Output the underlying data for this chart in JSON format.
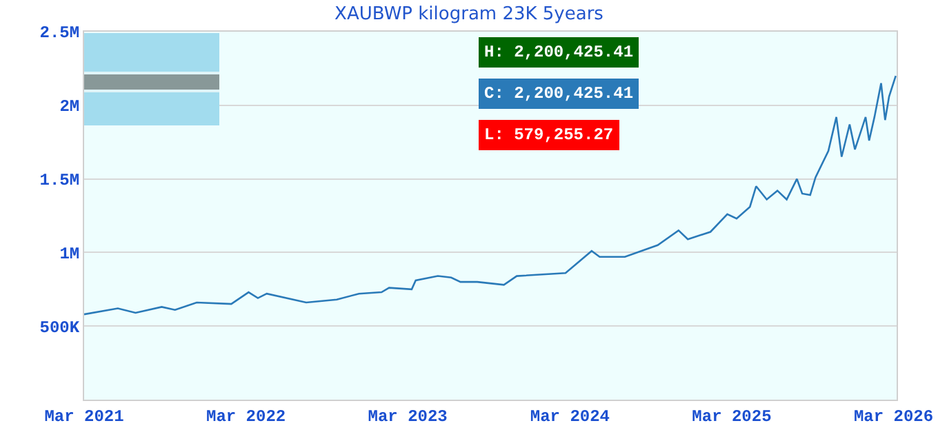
{
  "chart_data": {
    "type": "line",
    "title": "XAUBWP kilogram 23K 5years",
    "x": [
      "2021-03-01",
      "2021-05-16",
      "2021-06-25",
      "2021-08-23",
      "2021-09-22",
      "2021-11-10",
      "2022-01-27",
      "2022-03-07",
      "2022-03-28",
      "2022-04-17",
      "2022-07-15",
      "2022-09-22",
      "2022-11-11",
      "2023-01-01",
      "2023-01-18",
      "2023-03-10",
      "2023-03-19",
      "2023-05-08",
      "2023-06-07",
      "2023-06-28",
      "2023-08-05",
      "2023-10-04",
      "2023-11-02",
      "2024-02-20",
      "2024-04-19",
      "2024-05-07",
      "2024-07-03",
      "2024-09-15",
      "2024-11-01",
      "2024-11-22",
      "2025-01-12",
      "2025-02-19",
      "2025-03-12",
      "2025-04-11",
      "2025-04-25",
      "2025-05-19",
      "2025-06-12",
      "2025-07-03",
      "2025-07-26",
      "2025-08-07",
      "2025-08-25",
      "2025-09-06",
      "2025-10-05",
      "2025-10-23",
      "2025-11-04",
      "2025-11-22",
      "2025-12-04",
      "2025-12-28",
      "2026-01-05",
      "2026-01-17",
      "2026-02-01",
      "2026-02-10",
      "2026-02-19",
      "2026-03-06"
    ],
    "series": [
      {
        "color": "#2a7ab8",
        "values": [
          580000,
          620000,
          590000,
          630000,
          610000,
          660000,
          650000,
          730000,
          690000,
          720000,
          660000,
          680000,
          720000,
          730000,
          760000,
          750000,
          810000,
          840000,
          830000,
          800000,
          800000,
          780000,
          840000,
          860000,
          1010000,
          970000,
          970000,
          1050000,
          1150000,
          1090000,
          1140000,
          1260000,
          1230000,
          1310000,
          1450000,
          1360000,
          1420000,
          1360000,
          1500000,
          1400000,
          1390000,
          1510000,
          1690000,
          1920000,
          1650000,
          1870000,
          1700000,
          1920000,
          1760000,
          1920000,
          2150000,
          1900000,
          2060000,
          2200000
        ]
      }
    ],
    "xlim": [
      "2021-03-01",
      "2026-03-08"
    ],
    "xticks": [
      {
        "value": "2021-03-01",
        "label": "Mar 2021"
      },
      {
        "value": "2022-03-01",
        "label": "Mar 2022"
      },
      {
        "value": "2023-03-01",
        "label": "Mar 2023"
      },
      {
        "value": "2024-03-01",
        "label": "Mar 2024"
      },
      {
        "value": "2025-03-01",
        "label": "Mar 2025"
      },
      {
        "value": "2026-03-01",
        "label": "Mar 2026"
      }
    ],
    "ylim": [
      0,
      2500000
    ],
    "yticks": [
      {
        "value": 500000,
        "label": "500K"
      },
      {
        "value": 1000000,
        "label": "1M"
      },
      {
        "value": 1500000,
        "label": "1.5M"
      },
      {
        "value": 2000000,
        "label": "2M"
      },
      {
        "value": 2500000,
        "label": "2.5M"
      }
    ],
    "grid": "y",
    "marker": "none",
    "line_style": "solid",
    "annotations": [
      "H: 2,200,425.41",
      "C: 2,200,425.41",
      "L: 579,255.27"
    ]
  }
}
